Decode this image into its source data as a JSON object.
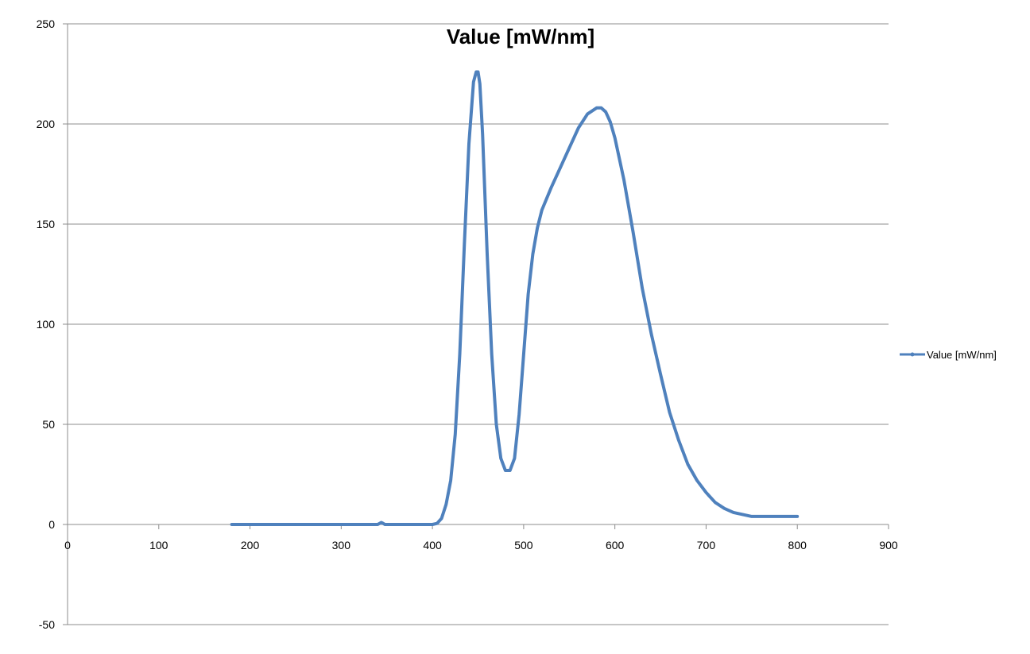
{
  "chart_data": {
    "type": "line",
    "title": "Value [mW/nm]",
    "xlabel": "",
    "ylabel": "",
    "xlim": [
      0,
      900
    ],
    "ylim": [
      -50,
      250
    ],
    "x_ticks": [
      "0",
      "100",
      "200",
      "300",
      "400",
      "500",
      "600",
      "700",
      "800",
      "900"
    ],
    "y_ticks": [
      "-50",
      "0",
      "50",
      "100",
      "150",
      "200",
      "250"
    ],
    "grid": "horizontal",
    "legend_position": "right",
    "colors": {
      "series": "#4f81bd",
      "grid": "#8c8c8c",
      "axis": "#8c8c8c"
    },
    "series": [
      {
        "name": "Value [mW/nm]",
        "x": [
          180,
          200,
          250,
          300,
          340,
          344,
          346,
          348,
          352,
          400,
          405,
          410,
          415,
          420,
          425,
          430,
          435,
          440,
          445,
          448,
          450,
          452,
          455,
          460,
          465,
          470,
          475,
          480,
          485,
          490,
          495,
          500,
          505,
          510,
          515,
          520,
          530,
          540,
          550,
          560,
          570,
          580,
          585,
          590,
          595,
          600,
          610,
          620,
          630,
          640,
          650,
          660,
          670,
          680,
          690,
          700,
          710,
          720,
          730,
          740,
          750,
          760,
          780,
          800
        ],
        "values": [
          0,
          0,
          0,
          0,
          0,
          1,
          0.5,
          0,
          0,
          0,
          0.5,
          3,
          10,
          22,
          45,
          85,
          140,
          190,
          221,
          226,
          226,
          220,
          195,
          135,
          85,
          50,
          33,
          27,
          27,
          33,
          55,
          85,
          115,
          135,
          148,
          157,
          168,
          178,
          188,
          198,
          205,
          208,
          208,
          206,
          201,
          193,
          172,
          146,
          118,
          95,
          75,
          56,
          42,
          30,
          22,
          16,
          11,
          8,
          6,
          5,
          4,
          4,
          4,
          4
        ]
      }
    ]
  }
}
